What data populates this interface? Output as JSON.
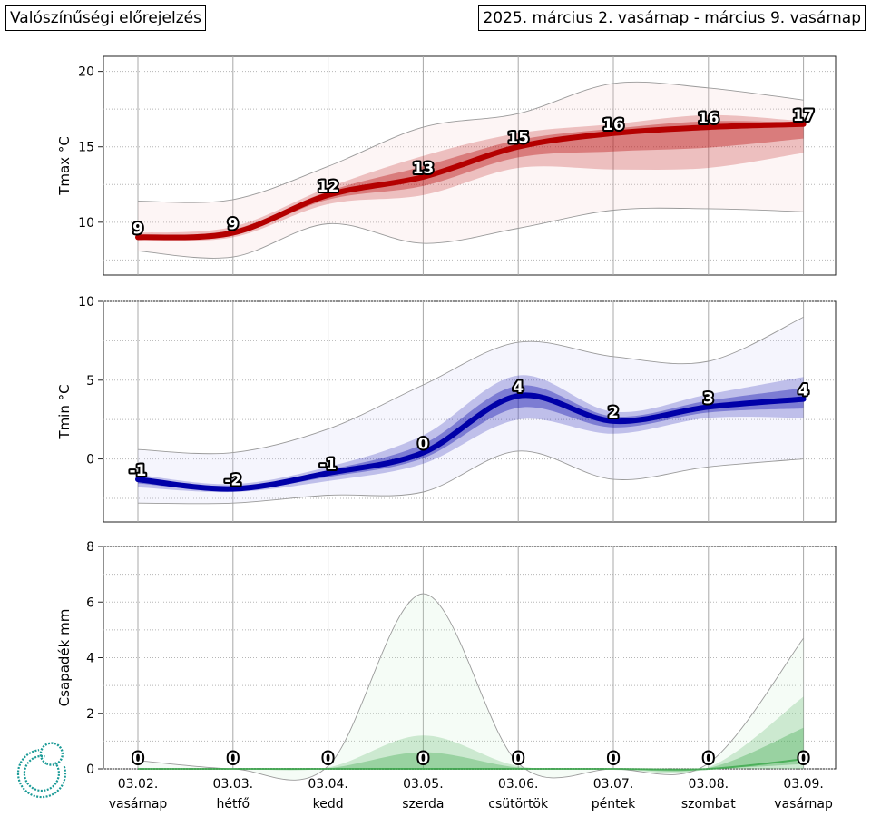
{
  "header": {
    "left_title": "Valószínűségi előrejelzés",
    "right_title": "2025. március 2. vasárnap - március 9. vasárnap"
  },
  "colors": {
    "tmax": "#b40000",
    "tmin": "#0000a8",
    "precip": "#3aa84a",
    "logo": "#1a9a96"
  },
  "logo_icon": "swirl-logo-icon",
  "chart_data": [
    {
      "type": "area",
      "ylabel": "Tmax °C",
      "ylim": [
        6.5,
        21
      ],
      "yticks": [
        10,
        15,
        20
      ],
      "grid": true,
      "categories": [
        "03.02.",
        "03.03.",
        "03.04.",
        "03.05.",
        "03.06.",
        "03.07.",
        "03.08.",
        "03.09."
      ],
      "day_names": [
        "vasárnap",
        "hétfő",
        "kedd",
        "szerda",
        "csütörtök",
        "péntek",
        "szombat",
        "vasárnap"
      ],
      "labels": [
        "9",
        "9",
        "12",
        "13",
        "15",
        "16",
        "16",
        "17"
      ],
      "median": [
        9.0,
        9.3,
        11.8,
        13.0,
        15.0,
        15.9,
        16.3,
        16.5
      ],
      "q_low": [
        8.8,
        9.0,
        11.2,
        11.8,
        13.6,
        13.5,
        13.6,
        14.6
      ],
      "q_high": [
        9.3,
        9.7,
        12.3,
        14.4,
        15.9,
        16.5,
        17.1,
        16.7
      ],
      "min": [
        8.1,
        7.7,
        9.9,
        8.6,
        9.6,
        10.8,
        10.9,
        10.7
      ],
      "max": [
        11.4,
        11.5,
        13.7,
        16.3,
        17.2,
        19.2,
        18.9,
        18.1
      ]
    },
    {
      "type": "area",
      "ylabel": "Tmin °C",
      "ylim": [
        -4,
        10
      ],
      "yticks": [
        0,
        5,
        10
      ],
      "grid": true,
      "categories": [
        "03.02.",
        "03.03.",
        "03.04.",
        "03.05.",
        "03.06.",
        "03.07.",
        "03.08.",
        "03.09."
      ],
      "labels": [
        "-1",
        "-2",
        "-1",
        "0",
        "4",
        "2",
        "3",
        "4"
      ],
      "median": [
        -1.3,
        -1.9,
        -0.9,
        0.4,
        4.0,
        2.4,
        3.3,
        3.8
      ],
      "q_low": [
        -1.8,
        -2.1,
        -1.4,
        -0.3,
        2.5,
        1.6,
        2.6,
        2.6
      ],
      "q_high": [
        -1.0,
        -1.6,
        -0.5,
        1.5,
        5.3,
        3.0,
        4.1,
        5.2
      ],
      "min": [
        -2.8,
        -2.8,
        -2.3,
        -2.1,
        0.5,
        -1.3,
        -0.5,
        0.0
      ],
      "max": [
        0.6,
        0.4,
        1.9,
        4.7,
        7.4,
        6.5,
        6.2,
        9.0
      ]
    },
    {
      "type": "area",
      "ylabel": "Csapadék mm",
      "ylim": [
        0,
        8
      ],
      "yticks": [
        0,
        2,
        4,
        6,
        8
      ],
      "grid": true,
      "categories": [
        "03.02.",
        "03.03.",
        "03.04.",
        "03.05.",
        "03.06.",
        "03.07.",
        "03.08.",
        "03.09."
      ],
      "day_names": [
        "vasárnap",
        "hétfő",
        "kedd",
        "szerda",
        "csütörtök",
        "péntek",
        "szombat",
        "vasárnap"
      ],
      "labels": [
        "0",
        "0",
        "0",
        "0",
        "0",
        "0",
        "0",
        "0"
      ],
      "median": [
        0,
        0,
        0,
        0,
        0,
        0,
        0,
        0.35
      ],
      "q_high": [
        0,
        0,
        0.05,
        1.2,
        0.1,
        0,
        0.05,
        2.6
      ],
      "max": [
        0.3,
        0,
        0.1,
        6.3,
        0.2,
        0,
        0.2,
        4.7
      ]
    }
  ]
}
